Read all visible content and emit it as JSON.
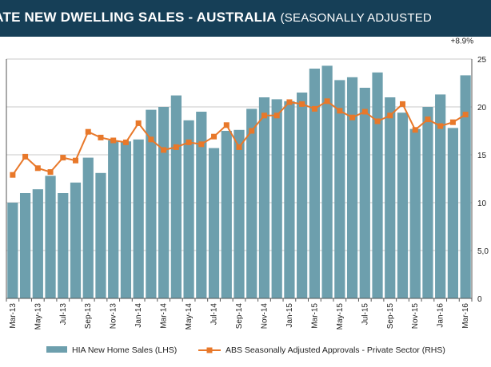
{
  "header": {
    "title_main": "VATE NEW DWELLING SALES -  AUSTRALIA",
    "title_sub": "(SEASONALLY ADJUSTED"
  },
  "chart_data": {
    "type": "bar+line",
    "categories": [
      "Mar-13",
      "Apr-13",
      "May-13",
      "Jun-13",
      "Jul-13",
      "Aug-13",
      "Sep-13",
      "Oct-13",
      "Nov-13",
      "Dec-13",
      "Jan-14",
      "Feb-14",
      "Mar-14",
      "Apr-14",
      "May-14",
      "Jun-14",
      "Jul-14",
      "Aug-14",
      "Sep-14",
      "Oct-14",
      "Nov-14",
      "Dec-14",
      "Jan-15",
      "Feb-15",
      "Mar-15",
      "Apr-15",
      "May-15",
      "Jun-15",
      "Jul-15",
      "Aug-15",
      "Sep-15",
      "Oct-15",
      "Nov-15",
      "Dec-15",
      "Jan-16",
      "Feb-16",
      "Mar-16"
    ],
    "x_tick_labels": [
      "Mar-13",
      "May-13",
      "Jul-13",
      "Sep-13",
      "Nov-13",
      "Jan-14",
      "Mar-14",
      "May-14",
      "Jul-14",
      "Sep-14",
      "Nov-14",
      "Jan-15",
      "Mar-15",
      "May-15",
      "Jul-15",
      "Sep-15",
      "Nov-15",
      "Jan-16",
      "Mar-16"
    ],
    "series": [
      {
        "name": "HIA New Home Sales (LHS)",
        "type": "bar",
        "axis": "left",
        "color": "#6d9fad",
        "values": [
          10000,
          11000,
          11400,
          12800,
          11000,
          12100,
          14700,
          13100,
          16500,
          16400,
          16600,
          19700,
          20000,
          21200,
          18600,
          19500,
          15700,
          17500,
          17600,
          19800,
          21000,
          20800,
          20600,
          21500,
          24000,
          24300,
          22800,
          23100,
          22000,
          23600,
          21000,
          19400,
          17700,
          20000,
          21300,
          17800,
          23300
        ]
      },
      {
        "name": "ABS Seasonally Adjusted Approvals - Private Sector (RHS)",
        "type": "line",
        "axis": "right",
        "color": "#e8782a",
        "values": [
          12.9,
          14.8,
          13.6,
          13.2,
          14.7,
          14.4,
          17.4,
          16.8,
          16.5,
          16.3,
          18.3,
          16.6,
          15.5,
          15.8,
          16.3,
          16.1,
          16.9,
          18.1,
          15.8,
          17.5,
          19.1,
          19.1,
          20.5,
          20.3,
          19.8,
          20.6,
          19.6,
          18.9,
          19.5,
          18.5,
          19.1,
          20.3,
          17.6,
          18.7,
          18.0,
          18.4,
          19.2
        ]
      }
    ],
    "annotation": "+8.9%",
    "y_right_ticks": [
      "25",
      "20",
      "15",
      "10",
      "5,0",
      "0"
    ],
    "ylim_left": [
      0,
      25000
    ],
    "ylim_right": [
      0,
      25
    ],
    "legend": {
      "position": "bottom"
    }
  }
}
